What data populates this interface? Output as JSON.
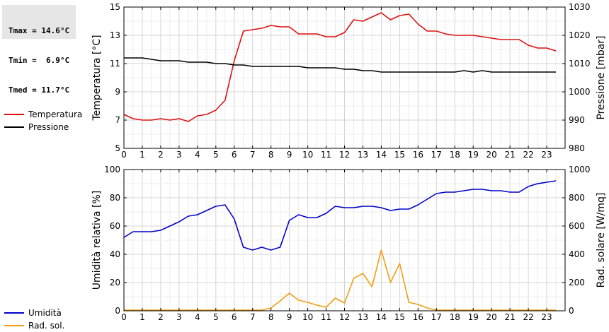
{
  "stats": {
    "tmax": "Tmax = 14.6°C",
    "tmin": "Tmin =  6.9°C",
    "tmed": "Tmed = 11.7°C"
  },
  "colors": {
    "temperatura": "#dd1111",
    "pressione": "#000000",
    "umidita": "#0000cc",
    "rad_sol": "#f0a010"
  },
  "chart_data": [
    {
      "type": "line",
      "grid": true,
      "legend_position": "left",
      "xlabel": "",
      "xlim": [
        0,
        24
      ],
      "xticks": [
        0,
        1,
        2,
        3,
        4,
        5,
        6,
        7,
        8,
        9,
        10,
        11,
        12,
        13,
        14,
        15,
        16,
        17,
        18,
        19,
        20,
        21,
        22,
        23
      ],
      "ylabel": "Temperatura [°C]",
      "ylim": [
        5,
        15
      ],
      "yticks": [
        5,
        7,
        9,
        11,
        13,
        15
      ],
      "y2label": "Pressione [mbar]",
      "y2lim": [
        980,
        1030
      ],
      "y2ticks": [
        980,
        990,
        1000,
        1010,
        1020,
        1030
      ],
      "series": [
        {
          "name": "Temperatura",
          "axis": "left",
          "color": "#dd1111",
          "x": [
            0,
            0.5,
            1,
            1.5,
            2,
            2.5,
            3,
            3.5,
            4,
            4.5,
            5,
            5.5,
            6,
            6.5,
            7,
            7.5,
            8,
            8.5,
            9,
            9.5,
            10,
            10.5,
            11,
            11.5,
            12,
            12.5,
            13,
            13.5,
            14,
            14.5,
            15,
            15.5,
            16,
            16.5,
            17,
            17.5,
            18,
            18.5,
            19,
            19.5,
            20,
            20.5,
            21,
            21.5,
            22,
            22.5,
            23,
            23.5
          ],
          "values": [
            7.4,
            7.1,
            7.0,
            7.0,
            7.1,
            7.0,
            7.1,
            6.9,
            7.3,
            7.4,
            7.7,
            8.4,
            11.2,
            13.3,
            13.4,
            13.5,
            13.7,
            13.6,
            13.6,
            13.1,
            13.1,
            13.1,
            12.9,
            12.9,
            13.2,
            14.1,
            14.0,
            14.3,
            14.6,
            14.1,
            14.4,
            14.5,
            13.8,
            13.3,
            13.3,
            13.1,
            13.0,
            13.0,
            13.0,
            12.9,
            12.8,
            12.7,
            12.7,
            12.7,
            12.3,
            12.1,
            12.1,
            11.9
          ]
        },
        {
          "name": "Pressione",
          "axis": "right",
          "color": "#000000",
          "x": [
            0,
            0.5,
            1,
            1.5,
            2,
            2.5,
            3,
            3.5,
            4,
            4.5,
            5,
            5.5,
            6,
            6.5,
            7,
            7.5,
            8,
            8.5,
            9,
            9.5,
            10,
            10.5,
            11,
            11.5,
            12,
            12.5,
            13,
            13.5,
            14,
            14.5,
            15,
            15.5,
            16,
            16.5,
            17,
            17.5,
            18,
            18.5,
            19,
            19.5,
            20,
            20.5,
            21,
            21.5,
            22,
            22.5,
            23,
            23.5
          ],
          "values": [
            1012,
            1012,
            1012,
            1011.5,
            1011,
            1011,
            1011,
            1010.5,
            1010.5,
            1010.5,
            1010,
            1010,
            1009.5,
            1009.5,
            1009,
            1009,
            1009,
            1009,
            1009,
            1009,
            1008.5,
            1008.5,
            1008.5,
            1008.5,
            1008,
            1008,
            1007.5,
            1007.5,
            1007,
            1007,
            1007,
            1007,
            1007,
            1007,
            1007,
            1007,
            1007,
            1007.5,
            1007,
            1007.5,
            1007,
            1007,
            1007,
            1007,
            1007,
            1007,
            1007,
            1007
          ]
        }
      ]
    },
    {
      "type": "line",
      "grid": true,
      "legend_position": "left",
      "xlabel": "",
      "xlim": [
        0,
        24
      ],
      "xticks": [
        0,
        1,
        2,
        3,
        4,
        5,
        6,
        7,
        8,
        9,
        10,
        11,
        12,
        13,
        14,
        15,
        16,
        17,
        18,
        19,
        20,
        21,
        22,
        23
      ],
      "ylabel": "Umidità relativa [%]",
      "ylim": [
        0,
        100
      ],
      "yticks": [
        0,
        20,
        40,
        60,
        80,
        100
      ],
      "y2label": "Rad. solare [W/mq]",
      "y2lim": [
        0,
        1000
      ],
      "y2ticks": [
        0,
        200,
        400,
        600,
        800,
        1000
      ],
      "series": [
        {
          "name": "Umidità",
          "axis": "left",
          "color": "#0000cc",
          "x": [
            0,
            0.5,
            1,
            1.5,
            2,
            2.5,
            3,
            3.5,
            4,
            4.5,
            5,
            5.5,
            6,
            6.5,
            7,
            7.5,
            8,
            8.5,
            9,
            9.5,
            10,
            10.5,
            11,
            11.5,
            12,
            12.5,
            13,
            13.5,
            14,
            14.5,
            15,
            15.5,
            16,
            16.5,
            17,
            17.5,
            18,
            18.5,
            19,
            19.5,
            20,
            20.5,
            21,
            21.5,
            22,
            22.5,
            23,
            23.5
          ],
          "values": [
            52,
            56,
            56,
            56,
            57,
            60,
            63,
            67,
            68,
            71,
            74,
            75,
            65,
            45,
            43,
            45,
            43,
            45,
            64,
            68,
            66,
            66,
            69,
            74,
            73,
            73,
            74,
            74,
            73,
            71,
            72,
            72,
            75,
            79,
            83,
            84,
            84,
            85,
            86,
            86,
            85,
            85,
            84,
            84,
            88,
            90,
            91,
            92
          ]
        },
        {
          "name": "Rad. sol.",
          "axis": "right",
          "color": "#f0a010",
          "x": [
            0,
            0.5,
            1,
            1.5,
            2,
            2.5,
            3,
            3.5,
            4,
            4.5,
            5,
            5.5,
            6,
            6.5,
            7,
            7.5,
            8,
            8.5,
            9,
            9.5,
            10,
            10.5,
            11,
            11.5,
            12,
            12.5,
            13,
            13.5,
            14,
            14.5,
            15,
            15.5,
            16,
            16.5,
            17,
            17.5,
            18,
            18.5,
            19,
            19.5,
            20,
            20.5,
            21,
            21.5,
            22,
            22.5,
            23,
            23.5
          ],
          "values": [
            5,
            5,
            5,
            5,
            5,
            5,
            5,
            5,
            5,
            5,
            5,
            5,
            5,
            5,
            5,
            5,
            20,
            70,
            125,
            75,
            60,
            40,
            25,
            90,
            55,
            230,
            265,
            170,
            430,
            200,
            335,
            60,
            45,
            20,
            5,
            5,
            5,
            5,
            5,
            5,
            5,
            5,
            5,
            5,
            5,
            5,
            5,
            5
          ]
        }
      ]
    }
  ]
}
